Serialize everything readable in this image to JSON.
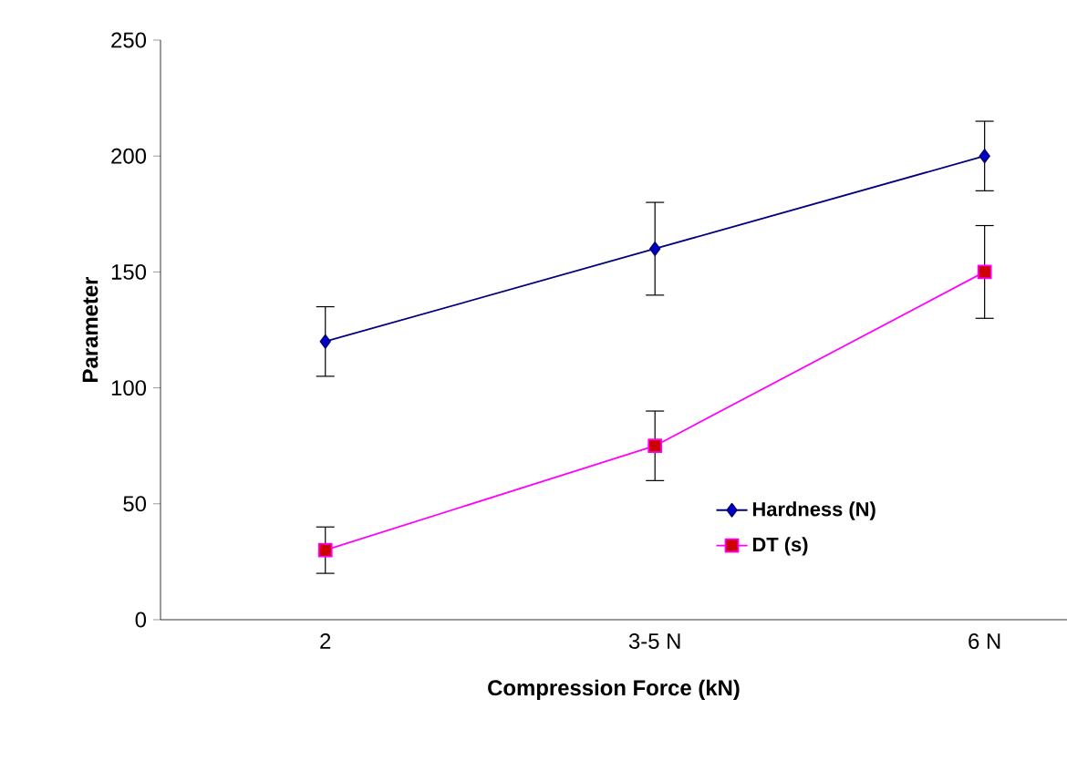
{
  "chart_data": {
    "type": "line",
    "xlabel": "Compression Force (kN)",
    "ylabel": "Parameter",
    "categories": [
      "2",
      "3-5 N",
      "6 N"
    ],
    "series": [
      {
        "name": "Hardness (N)",
        "color": "#000080",
        "marker": "diamond",
        "values": [
          120,
          160,
          200
        ],
        "errors": [
          15,
          20,
          15
        ]
      },
      {
        "name": "DT (s)",
        "color": "#ff00ff",
        "marker": "square",
        "values": [
          30,
          75,
          150
        ],
        "errors": [
          10,
          15,
          20
        ]
      }
    ],
    "ylim": [
      0,
      250
    ],
    "yticks": [
      0,
      50,
      100,
      150,
      200,
      250
    ],
    "grid": false,
    "legend": "bottom right",
    "line_style": "solid"
  }
}
